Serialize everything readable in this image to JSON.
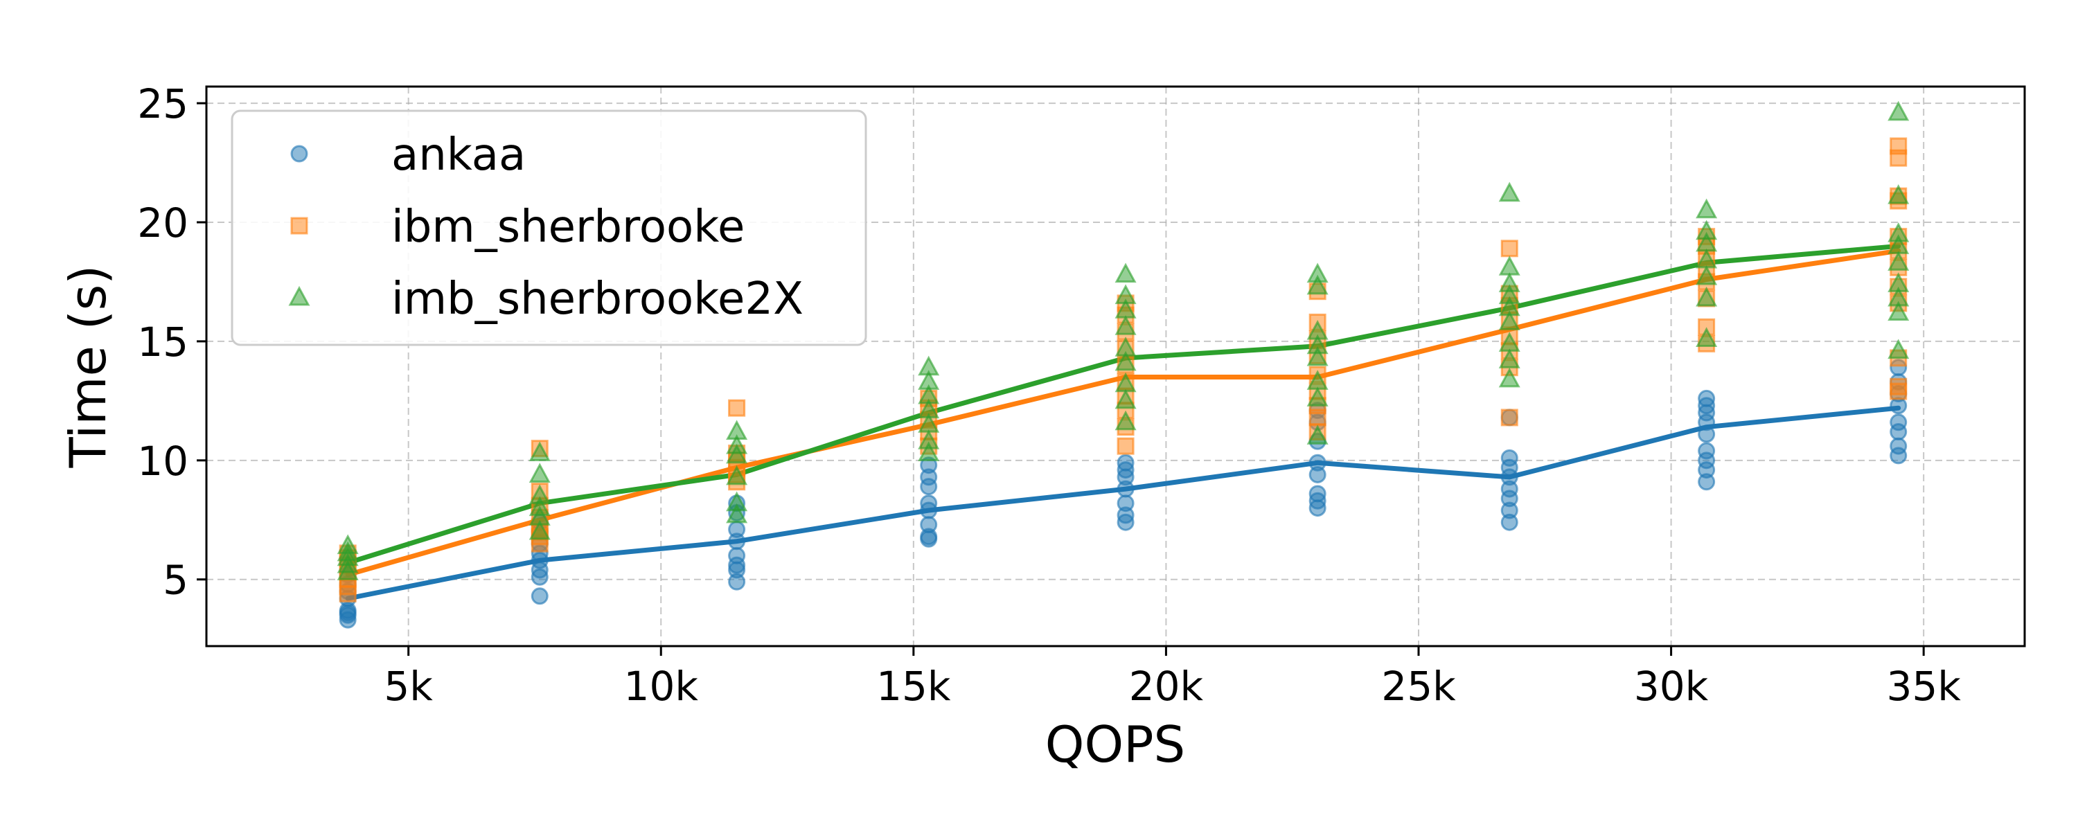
{
  "chart_data": {
    "type": "scatter",
    "title": "",
    "xlabel": "QOPS",
    "ylabel": "Time (s)",
    "xlim": [
      1000,
      37000
    ],
    "ylim": [
      2.2,
      25.7
    ],
    "xticks": [
      5000,
      10000,
      15000,
      20000,
      25000,
      30000,
      35000
    ],
    "xtick_labels": [
      "5k",
      "10k",
      "15k",
      "20k",
      "25k",
      "30k",
      "35k"
    ],
    "yticks": [
      5,
      10,
      15,
      20,
      25
    ],
    "ytick_labels": [
      "5",
      "10",
      "15",
      "20",
      "25"
    ],
    "grid": true,
    "legend_position": "upper-left",
    "x": [
      3800,
      7600,
      11500,
      15300,
      19200,
      23000,
      26800,
      30700,
      34500
    ],
    "series": [
      {
        "name": "ankaa",
        "marker": "circle",
        "color": "#1f77b4",
        "line": [
          4.2,
          5.8,
          6.6,
          7.9,
          8.8,
          9.9,
          9.3,
          11.4,
          12.2
        ],
        "points": [
          [
            3.3,
            3.5,
            3.6,
            3.7,
            4.2,
            4.5,
            4.8,
            5.2
          ],
          [
            4.3,
            5.1,
            5.4,
            5.8,
            6.1,
            6.5,
            7.0,
            7.4
          ],
          [
            4.9,
            5.4,
            5.6,
            6.0,
            6.6,
            7.1,
            7.8,
            8.2
          ],
          [
            6.7,
            6.8,
            7.3,
            7.9,
            8.2,
            8.9,
            9.3,
            9.8
          ],
          [
            7.4,
            7.7,
            8.2,
            8.8,
            9.3,
            9.6,
            9.9
          ],
          [
            8.0,
            8.3,
            8.6,
            9.4,
            9.9,
            10.8,
            11.6,
            12.1
          ],
          [
            7.4,
            7.9,
            8.4,
            8.8,
            9.3,
            9.7,
            10.1,
            11.8
          ],
          [
            9.1,
            9.6,
            10.0,
            10.4,
            11.1,
            11.6,
            12.0,
            12.3,
            12.6
          ],
          [
            10.2,
            10.6,
            11.2,
            11.6,
            12.3,
            12.8,
            13.3,
            13.9
          ]
        ]
      },
      {
        "name": "ibm_sherbrooke",
        "marker": "square",
        "color": "#ff7f0e",
        "line": [
          5.2,
          7.5,
          9.7,
          11.5,
          13.5,
          13.5,
          15.5,
          17.6,
          18.8
        ],
        "points": [
          [
            4.4,
            4.7,
            5.0,
            5.3,
            5.6,
            5.9,
            6.1
          ],
          [
            6.5,
            6.8,
            7.0,
            7.2,
            7.6,
            8.1,
            8.7,
            10.5
          ],
          [
            9.1,
            9.4,
            9.7,
            10.0,
            10.3,
            12.2
          ],
          [
            10.6,
            11.2,
            11.7,
            12.2,
            12.6
          ],
          [
            10.6,
            11.4,
            12.1,
            12.7,
            13.3,
            14.0,
            14.7,
            15.4,
            16.1,
            16.6
          ],
          [
            11.2,
            11.8,
            12.3,
            12.9,
            13.6,
            14.4,
            15.1,
            15.8,
            17.1
          ],
          [
            11.8,
            13.9,
            14.6,
            15.2,
            15.9,
            16.5,
            17.0,
            18.9
          ],
          [
            14.9,
            15.6,
            16.8,
            17.5,
            18.0,
            18.5,
            19.0,
            19.4
          ],
          [
            12.9,
            13.1,
            14.3,
            16.6,
            17.3,
            18.1,
            18.8,
            19.4,
            20.9,
            21.1,
            22.7,
            23.2
          ]
        ]
      },
      {
        "name": "imb_sherbrooke2X",
        "marker": "triangle",
        "color": "#2ca02c",
        "line": [
          5.7,
          8.2,
          9.4,
          12.0,
          14.3,
          14.8,
          16.4,
          18.3,
          19.0
        ],
        "points": [
          [
            5.3,
            5.6,
            5.9,
            6.1,
            6.4
          ],
          [
            7.0,
            7.6,
            8.0,
            8.5,
            9.4,
            10.3
          ],
          [
            7.7,
            8.2,
            9.3,
            10.2,
            10.6,
            11.2
          ],
          [
            10.3,
            10.8,
            11.5,
            12.1,
            12.7,
            13.3,
            13.9
          ],
          [
            11.6,
            12.5,
            13.2,
            14.1,
            14.7,
            15.6,
            16.3,
            16.9,
            17.8
          ],
          [
            11.0,
            12.6,
            13.3,
            14.3,
            14.8,
            15.4,
            17.3,
            17.8
          ],
          [
            13.4,
            14.2,
            14.9,
            15.8,
            16.4,
            16.9,
            17.4,
            18.1,
            21.2
          ],
          [
            15.1,
            16.8,
            17.7,
            18.4,
            19.1,
            19.6,
            20.5
          ],
          [
            14.6,
            16.2,
            16.8,
            17.4,
            18.3,
            19.0,
            19.5,
            21.1,
            24.6
          ]
        ]
      }
    ]
  }
}
